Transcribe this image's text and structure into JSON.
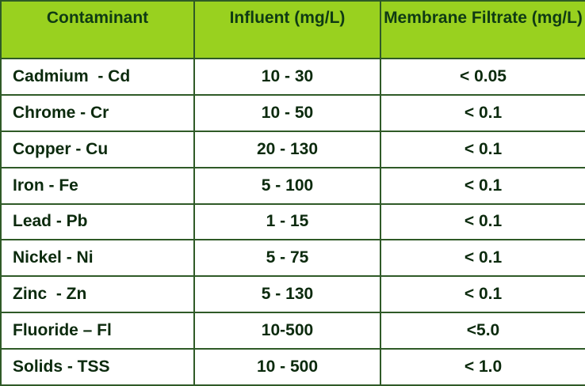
{
  "table": {
    "headers": [
      "Contaminant",
      "Influent (mg/L)",
      "Membrane Filtrate (mg/L)"
    ],
    "header_color": "#99d11f",
    "rows": [
      {
        "contaminant": "Cadmium  - Cd",
        "influent": "10 - 30",
        "filtrate": "< 0.05"
      },
      {
        "contaminant": "Chrome - Cr",
        "influent": "10 - 50",
        "filtrate": "< 0.1"
      },
      {
        "contaminant": "Copper - Cu",
        "influent": "20 - 130",
        "filtrate": "< 0.1"
      },
      {
        "contaminant": "Iron - Fe",
        "influent": "5 - 100",
        "filtrate": "< 0.1"
      },
      {
        "contaminant": "Lead - Pb",
        "influent": "1 - 15",
        "filtrate": "< 0.1"
      },
      {
        "contaminant": "Nickel - Ni",
        "influent": "5 - 75",
        "filtrate": "< 0.1"
      },
      {
        "contaminant": "Zinc  - Zn",
        "influent": "5 - 130",
        "filtrate": "< 0.1"
      },
      {
        "contaminant": "Fluoride – Fl",
        "influent": "10-500",
        "filtrate": "<5.0"
      },
      {
        "contaminant": "Solids - TSS",
        "influent": "10 - 500",
        "filtrate": "< 1.0"
      }
    ]
  }
}
